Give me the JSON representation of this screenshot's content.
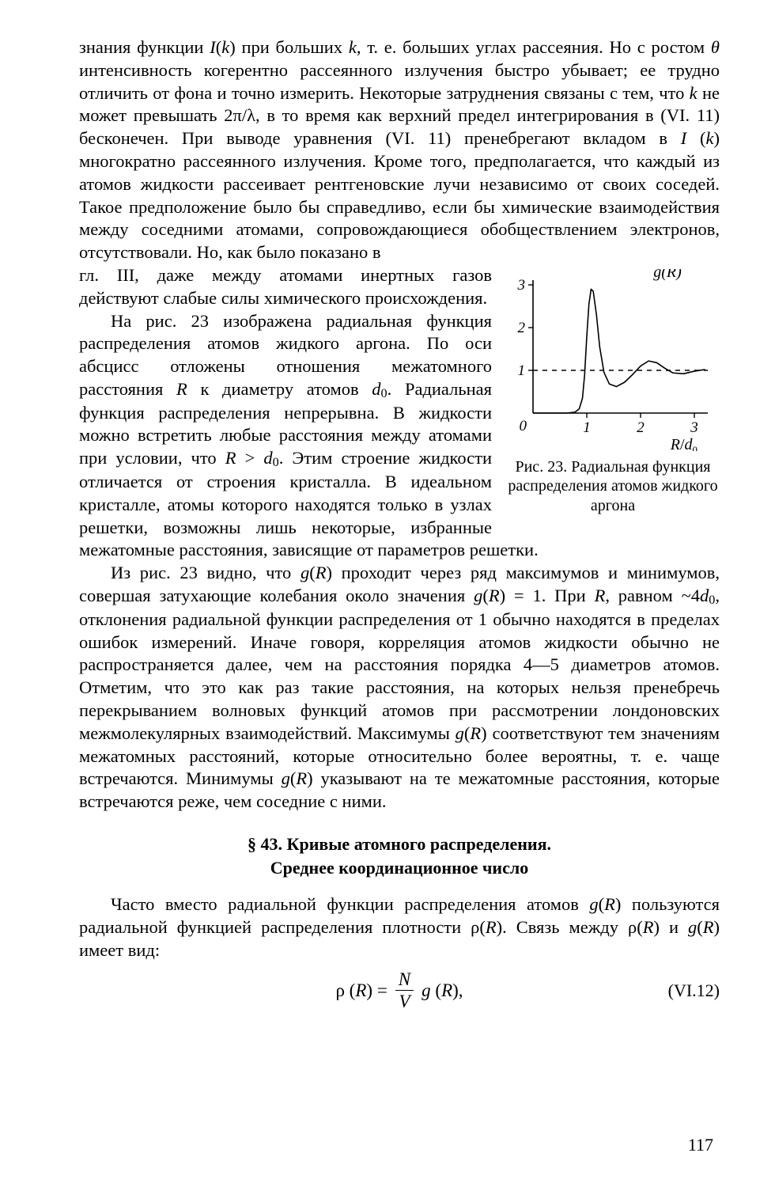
{
  "para1": "знания функции I(k) при больших k, т. е. больших углах рассеяния. Но с ростом θ интенсивность когерентно рассеянного излучения быстро убывает; ее трудно отличить от фона и точно измерить. Некоторые затруднения связаны с тем, что k не может превышать 2π/λ, в то время как верхний предел интегрирования в (VI. 11) бесконечен. При выводе уравнения (VI. 11) пренебрегают вкладом в I (k) многократно рассеянного излучения. Кроме того, предполагается, что каждый из атомов жидкости рассеивает рентгеновские лучи независимо от своих соседей. Такое предположение было бы справедливо, если бы химические взаимодействия между соседними атомами, сопровождающиеся обобществлением электронов, отсутствовали. Но, как было показано в гл. III, даже между атомами инертных газов действуют слабые силы химического происхождения.",
  "fig_caption": "Рис. 23. Радиальная функция распределения атомов жидкого аргона",
  "fig": {
    "type": "line",
    "y_label": "g(R)",
    "x_label": "R/d₀",
    "ylim": [
      0,
      3
    ],
    "xlim": [
      0,
      3.2
    ],
    "xtick_labels": [
      "0",
      "1",
      "2",
      "3"
    ],
    "ytick_labels": [
      "1",
      "2",
      "3"
    ],
    "curve_color": "#000000",
    "axis_color": "#000000",
    "line_width": 1.6,
    "asymptote_y": 1,
    "asymptote_dash": "6,6",
    "curve_points": [
      [
        0.0,
        0.0
      ],
      [
        0.62,
        0.0
      ],
      [
        0.78,
        0.02
      ],
      [
        0.86,
        0.1
      ],
      [
        0.92,
        0.35
      ],
      [
        0.96,
        0.9
      ],
      [
        1.0,
        1.8
      ],
      [
        1.04,
        2.55
      ],
      [
        1.08,
        2.9
      ],
      [
        1.12,
        2.85
      ],
      [
        1.18,
        2.3
      ],
      [
        1.24,
        1.55
      ],
      [
        1.32,
        0.95
      ],
      [
        1.42,
        0.68
      ],
      [
        1.55,
        0.62
      ],
      [
        1.7,
        0.72
      ],
      [
        1.85,
        0.9
      ],
      [
        2.0,
        1.1
      ],
      [
        2.15,
        1.22
      ],
      [
        2.3,
        1.18
      ],
      [
        2.45,
        1.05
      ],
      [
        2.6,
        0.94
      ],
      [
        2.8,
        0.92
      ],
      [
        3.0,
        0.98
      ],
      [
        3.2,
        1.02
      ]
    ]
  },
  "section_title_l1": "§ 43. Кривые атомного распределения.",
  "section_title_l2": "Среднее координационное число",
  "eq": {
    "lhs": "ρ (R) =",
    "num": "N",
    "den": "V",
    "tail_g": "g (R),",
    "number": "(VI.12)"
  },
  "page_number": "117"
}
